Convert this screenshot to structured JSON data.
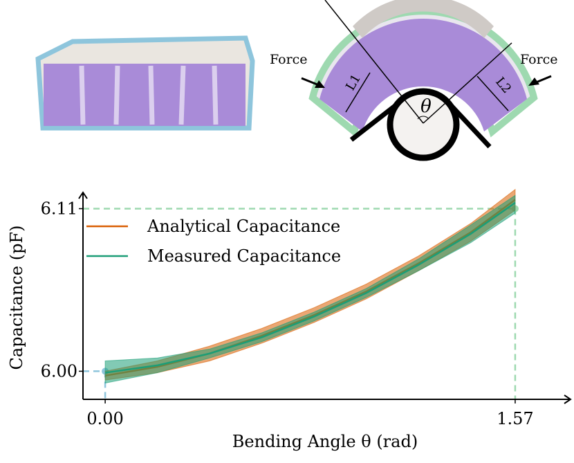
{
  "diagram": {
    "labels": [
      "Force",
      "Force",
      "L1",
      "L2",
      "θ"
    ]
  },
  "chart_data": {
    "type": "line",
    "x_label": "Bending Angle θ (rad)",
    "y_label": "Capacitance (pF)",
    "x": [
      0,
      0.2,
      0.4,
      0.6,
      0.8,
      1.0,
      1.2,
      1.4,
      1.57
    ],
    "series": [
      {
        "name": "Analytical Capacitance",
        "color": "#d95f02",
        "values": [
          5.997,
          6.003,
          6.012,
          6.024,
          6.038,
          6.054,
          6.073,
          6.094,
          6.116
        ],
        "lower": [
          5.994,
          5.999,
          6.007,
          6.019,
          6.033,
          6.049,
          6.068,
          6.088,
          6.109
        ],
        "upper": [
          6.0,
          6.007,
          6.017,
          6.029,
          6.043,
          6.059,
          6.078,
          6.1,
          6.123
        ]
      },
      {
        "name": "Measured Capacitance",
        "color": "#1b9e77",
        "values": [
          5.999,
          6.004,
          6.012,
          6.023,
          6.037,
          6.053,
          6.072,
          6.093,
          6.114
        ],
        "lower": [
          5.992,
          5.999,
          6.009,
          6.02,
          6.034,
          6.05,
          6.068,
          6.087,
          6.107
        ],
        "upper": [
          6.007,
          6.009,
          6.015,
          6.026,
          6.04,
          6.056,
          6.076,
          6.099,
          6.119
        ]
      }
    ],
    "xlim": [
      -0.085,
      1.782
    ],
    "ylim": [
      5.981,
      6.121
    ],
    "xticks": [
      {
        "value": 0,
        "label": "0.00"
      },
      1.57
    ],
    "yticks": [
      {
        "value": 6,
        "label": "6.00"
      },
      6.11
    ],
    "legend": "upper-left",
    "grid": false
  }
}
